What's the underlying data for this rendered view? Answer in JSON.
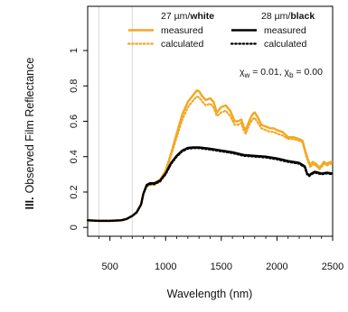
{
  "chart_data": {
    "type": "line",
    "xlabel": "Wavelength (nm)",
    "ylabel_prefix": "III.",
    "ylabel_main": "Observed Film Reflectance",
    "xlim": [
      300,
      2500
    ],
    "ylim": [
      -0.05,
      1.25
    ],
    "x_ticks": [
      500,
      1000,
      1500,
      2000,
      2500
    ],
    "y_ticks": [
      0,
      0.2,
      0.4,
      0.6,
      0.8,
      1
    ],
    "x_tick_labels": [
      "500",
      "1000",
      "1500",
      "2000",
      "2500"
    ],
    "y_tick_labels": [
      "0",
      "0.2",
      "0.4",
      "0.6",
      "0.8",
      "1"
    ],
    "grid": false,
    "legend": {
      "placement": "top-right",
      "groups": [
        {
          "prefix": "27 µm/",
          "bold": "white",
          "items": [
            {
              "label": "measured",
              "color": "#F2A824",
              "style": "solid"
            },
            {
              "label": "calculated",
              "color": "#F2A824",
              "style": "dotted"
            }
          ]
        },
        {
          "prefix": "28 µm/",
          "bold": "black",
          "items": [
            {
              "label": "measured",
              "color": "#000000",
              "style": "solid"
            },
            {
              "label": "calculated",
              "color": "#000000",
              "style": "dotted"
            }
          ]
        }
      ]
    },
    "annotation": {
      "chi": "χ",
      "sub_w": "w",
      "eq_w": " = 0.01, ",
      "sub_b": "b",
      "eq_b": " = 0.00"
    },
    "vertical_lines_x": [
      400,
      700
    ],
    "series": [
      {
        "key": "white_measured",
        "color": "#F2A824",
        "style": "solid",
        "x": [
          300,
          400,
          500,
          600,
          650,
          700,
          740,
          780,
          800,
          830,
          860,
          900,
          950,
          1000,
          1050,
          1100,
          1150,
          1200,
          1250,
          1280,
          1300,
          1330,
          1360,
          1400,
          1430,
          1460,
          1500,
          1540,
          1580,
          1620,
          1650,
          1680,
          1700,
          1720,
          1750,
          1780,
          1800,
          1830,
          1860,
          1900,
          1940,
          1970,
          2000,
          2050,
          2100,
          2150,
          2200,
          2230,
          2260,
          2280,
          2300,
          2320,
          2350,
          2380,
          2400,
          2420,
          2450,
          2480,
          2500
        ],
        "y": [
          0.04,
          0.037,
          0.037,
          0.04,
          0.048,
          0.065,
          0.085,
          0.13,
          0.19,
          0.24,
          0.25,
          0.25,
          0.27,
          0.32,
          0.42,
          0.53,
          0.64,
          0.71,
          0.75,
          0.775,
          0.77,
          0.74,
          0.72,
          0.73,
          0.71,
          0.65,
          0.68,
          0.69,
          0.66,
          0.6,
          0.6,
          0.61,
          0.57,
          0.55,
          0.6,
          0.64,
          0.65,
          0.62,
          0.58,
          0.57,
          0.56,
          0.56,
          0.55,
          0.54,
          0.51,
          0.51,
          0.5,
          0.49,
          0.42,
          0.38,
          0.35,
          0.37,
          0.36,
          0.34,
          0.35,
          0.37,
          0.36,
          0.37,
          0.37
        ]
      },
      {
        "key": "white_calculated",
        "color": "#F2A824",
        "style": "dotted",
        "x": [
          300,
          400,
          500,
          600,
          650,
          700,
          740,
          780,
          800,
          830,
          860,
          900,
          950,
          1000,
          1050,
          1100,
          1150,
          1200,
          1250,
          1280,
          1300,
          1330,
          1360,
          1400,
          1430,
          1460,
          1500,
          1540,
          1580,
          1620,
          1650,
          1680,
          1700,
          1720,
          1750,
          1780,
          1800,
          1830,
          1860,
          1900,
          1940,
          1970,
          2000,
          2050,
          2100,
          2150,
          2200,
          2230,
          2260,
          2280,
          2300,
          2320,
          2350,
          2380,
          2400,
          2420,
          2450,
          2480,
          2500
        ],
        "y": [
          0.04,
          0.037,
          0.037,
          0.04,
          0.048,
          0.065,
          0.085,
          0.13,
          0.19,
          0.23,
          0.24,
          0.24,
          0.26,
          0.31,
          0.41,
          0.51,
          0.61,
          0.68,
          0.72,
          0.74,
          0.735,
          0.71,
          0.69,
          0.7,
          0.68,
          0.63,
          0.65,
          0.66,
          0.63,
          0.58,
          0.58,
          0.59,
          0.55,
          0.53,
          0.58,
          0.61,
          0.62,
          0.59,
          0.56,
          0.55,
          0.54,
          0.54,
          0.53,
          0.52,
          0.5,
          0.5,
          0.49,
          0.48,
          0.41,
          0.37,
          0.34,
          0.36,
          0.35,
          0.33,
          0.34,
          0.36,
          0.35,
          0.36,
          0.36
        ]
      },
      {
        "key": "black_calculated",
        "color": "#000000",
        "style": "dotted",
        "x": [
          300,
          400,
          500,
          600,
          650,
          700,
          740,
          780,
          800,
          830,
          860,
          900,
          950,
          1000,
          1050,
          1100,
          1150,
          1200,
          1250,
          1300,
          1400,
          1500,
          1600,
          1700,
          1800,
          1900,
          2000,
          2100,
          2200,
          2250,
          2270,
          2290,
          2310,
          2340,
          2370,
          2400,
          2450,
          2500
        ],
        "y": [
          0.04,
          0.037,
          0.037,
          0.04,
          0.048,
          0.065,
          0.085,
          0.13,
          0.19,
          0.235,
          0.245,
          0.245,
          0.26,
          0.3,
          0.36,
          0.4,
          0.43,
          0.445,
          0.448,
          0.448,
          0.44,
          0.43,
          0.42,
          0.405,
          0.4,
          0.395,
          0.385,
          0.37,
          0.36,
          0.34,
          0.3,
          0.29,
          0.3,
          0.31,
          0.305,
          0.3,
          0.305,
          0.3
        ]
      },
      {
        "key": "black_measured",
        "color": "#000000",
        "style": "solid",
        "x": [
          300,
          400,
          500,
          600,
          650,
          700,
          740,
          780,
          800,
          830,
          860,
          900,
          950,
          1000,
          1050,
          1100,
          1150,
          1200,
          1250,
          1300,
          1400,
          1500,
          1600,
          1700,
          1800,
          1900,
          2000,
          2100,
          2200,
          2250,
          2270,
          2290,
          2310,
          2340,
          2370,
          2400,
          2450,
          2500
        ],
        "y": [
          0.04,
          0.037,
          0.037,
          0.04,
          0.048,
          0.065,
          0.085,
          0.13,
          0.19,
          0.24,
          0.25,
          0.25,
          0.265,
          0.305,
          0.365,
          0.405,
          0.435,
          0.45,
          0.452,
          0.452,
          0.445,
          0.435,
          0.425,
          0.41,
          0.405,
          0.4,
          0.39,
          0.375,
          0.365,
          0.345,
          0.305,
          0.295,
          0.305,
          0.315,
          0.31,
          0.305,
          0.31,
          0.305
        ]
      }
    ]
  }
}
